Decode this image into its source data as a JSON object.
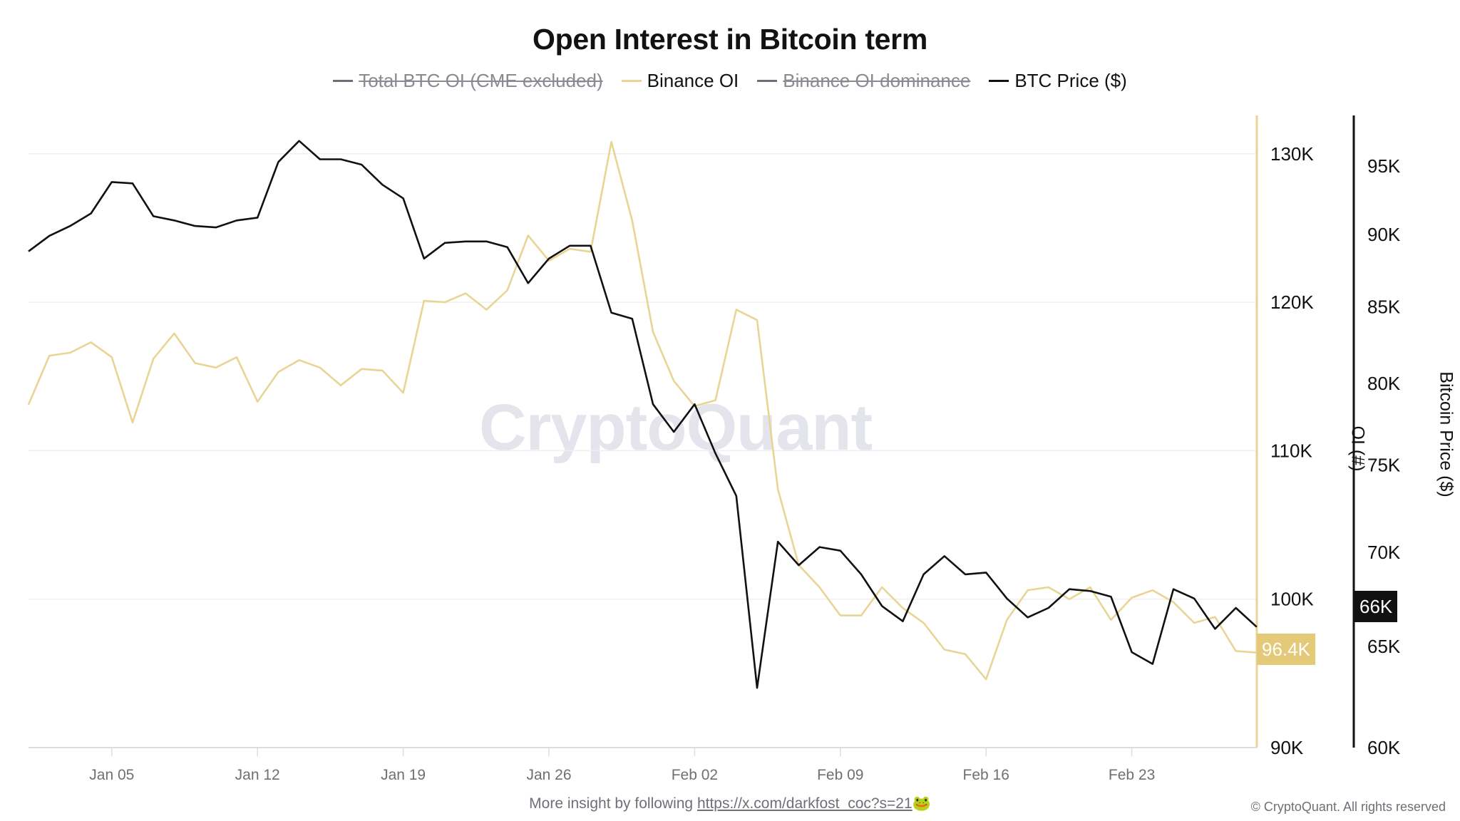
{
  "title": "Open Interest in Bitcoin term",
  "legend": [
    {
      "label": "Total BTC OI (CME excluded)",
      "color": "#6e6e76",
      "active": false
    },
    {
      "label": "Binance OI",
      "color": "#e8d596",
      "active": true
    },
    {
      "label": "Binance OI dominance",
      "color": "#6e6e76",
      "active": false
    },
    {
      "label": "BTC Price ($)",
      "color": "#111111",
      "active": true
    }
  ],
  "axes": {
    "x_ticks": [
      "Jan 05",
      "Jan 12",
      "Jan 19",
      "Jan 26",
      "Feb 02",
      "Feb 09",
      "Feb 16",
      "Feb 23"
    ],
    "y_left": {
      "label": "OI (#)",
      "ticks": [
        "130K",
        "120K",
        "110K",
        "100K",
        "90K"
      ]
    },
    "y_right": {
      "label": "Bitcoin Price ($)",
      "ticks": [
        "95K",
        "90K",
        "85K",
        "80K",
        "75K",
        "70K",
        "65K",
        "60K"
      ]
    }
  },
  "tags": {
    "oi_last": "96.4K",
    "price_last": "66K"
  },
  "watermark": "CryptoQuant",
  "footer": {
    "prefix": "More insight by following ",
    "link": "https://x.com/darkfost_coc?s=21",
    "emoji": "🐸",
    "copyright": "© CryptoQuant. All rights reserved"
  },
  "colors": {
    "binance_oi": "#e8d596",
    "btc_price": "#111111",
    "tag_oi_bg": "#e3c978",
    "grid": "#f0f0f3"
  },
  "chart_data": {
    "type": "line",
    "title": "Open Interest in Bitcoin term",
    "xlabel": "",
    "ylabel": "OI (#)",
    "ylabel_right": "Bitcoin Price ($)",
    "x_start": "Jan 01",
    "x_end": "Mar 01",
    "x_tick_labels": [
      "Jan 05",
      "Jan 12",
      "Jan 19",
      "Jan 26",
      "Feb 02",
      "Feb 09",
      "Feb 16",
      "Feb 23"
    ],
    "ylim_left": [
      90000,
      132000
    ],
    "ylim_right": [
      60000,
      98000
    ],
    "right_axis_scale": "log",
    "grid": true,
    "legend_position": "top",
    "series": [
      {
        "name": "Total BTC OI (CME excluded)",
        "hidden": true,
        "values": []
      },
      {
        "name": "Binance OI",
        "axis": "left",
        "color": "#e8d596",
        "values": [
          113.1,
          116.4,
          116.6,
          117.3,
          116.3,
          111.9,
          116.2,
          117.9,
          115.9,
          115.6,
          116.3,
          113.3,
          115.3,
          116.1,
          115.6,
          114.4,
          115.5,
          115.4,
          113.9,
          120.1,
          120.0,
          120.6,
          119.5,
          120.8,
          124.5,
          122.8,
          123.6,
          123.4,
          130.8,
          125.5,
          118.0,
          114.7,
          113.0,
          113.4,
          119.5,
          118.8,
          107.4,
          102.3,
          100.8,
          98.9,
          98.9,
          100.8,
          99.4,
          98.4,
          96.6,
          96.3,
          94.6,
          98.6,
          100.6,
          100.8,
          100.0,
          100.8,
          98.6,
          100.1,
          100.6,
          99.8,
          98.4,
          98.8,
          96.5,
          96.4
        ],
        "unit": "K BTC"
      },
      {
        "name": "Binance OI dominance",
        "hidden": true,
        "values": []
      },
      {
        "name": "BTC Price ($)",
        "axis": "right",
        "color": "#111111",
        "values": [
          88.8,
          89.9,
          90.6,
          91.5,
          93.8,
          93.7,
          91.3,
          91.0,
          90.6,
          90.5,
          91.0,
          91.2,
          95.3,
          96.9,
          95.5,
          95.5,
          95.1,
          93.6,
          92.6,
          88.3,
          89.4,
          89.5,
          89.5,
          89.1,
          86.6,
          88.3,
          89.2,
          89.2,
          84.6,
          84.2,
          78.7,
          77.0,
          78.7,
          75.7,
          73.2,
          62.9,
          70.6,
          69.3,
          70.3,
          70.1,
          68.8,
          67.1,
          66.3,
          68.8,
          69.8,
          68.8,
          68.9,
          67.5,
          66.5,
          67.0,
          68.0,
          67.9,
          67.6,
          64.7,
          64.1,
          68.0,
          67.5,
          65.9,
          67.0,
          66.0
        ],
        "unit": "K USD"
      }
    ],
    "last_values": {
      "Binance OI": "96.4K",
      "BTC Price ($)": "66K"
    }
  }
}
